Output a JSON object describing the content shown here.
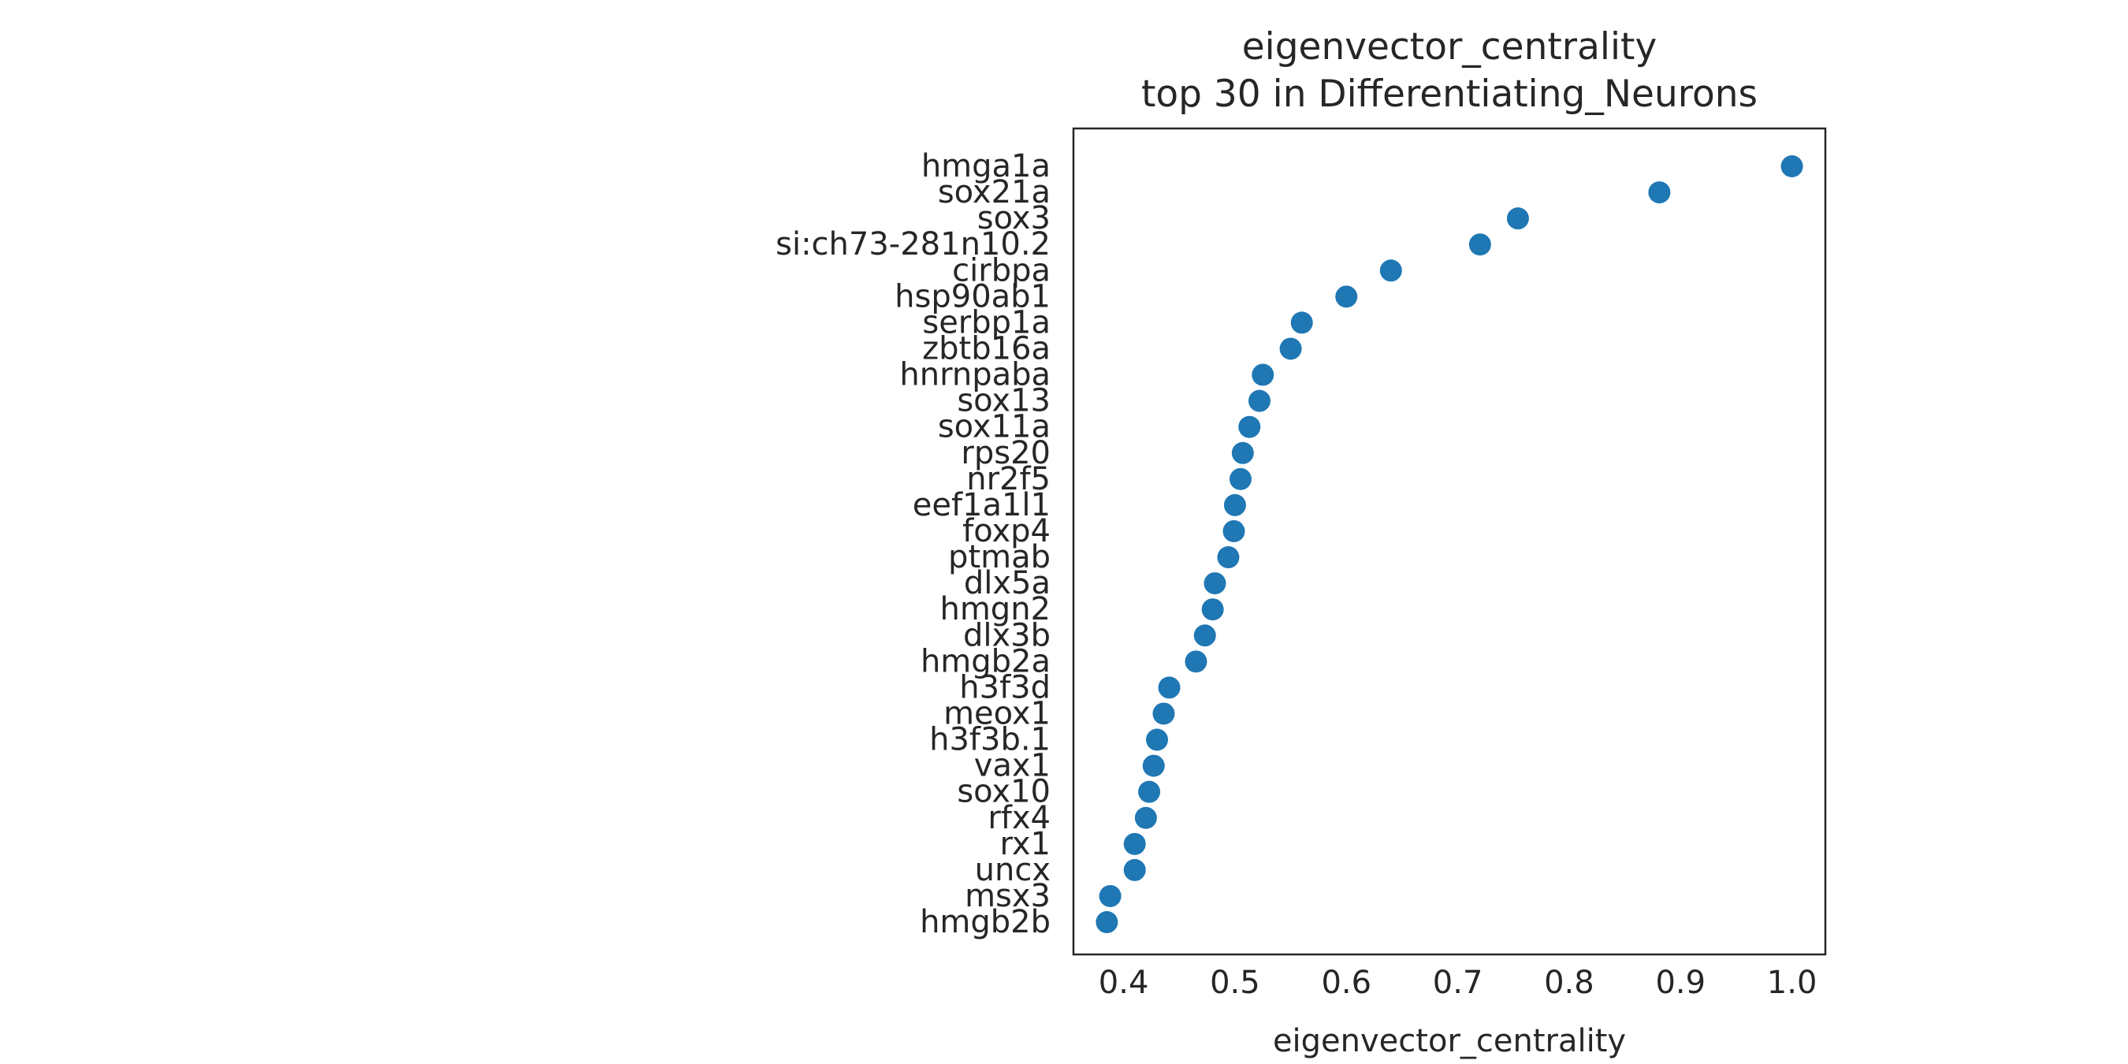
{
  "chart_data": {
    "type": "scatter",
    "title": [
      "eigenvector_centrality",
      "top 30 in Differentiating_Neurons"
    ],
    "xlabel": "eigenvector_centrality",
    "ylabel": "",
    "xlim": [
      0.355,
      1.03
    ],
    "xticks": [
      0.4,
      0.5,
      0.6,
      0.7,
      0.8,
      0.9,
      1.0
    ],
    "xtick_labels": [
      "0.4",
      "0.5",
      "0.6",
      "0.7",
      "0.8",
      "0.9",
      "1.0"
    ],
    "grid": false,
    "marker_color": "#1f77b4",
    "categories": [
      "hmga1a",
      "sox21a",
      "sox3",
      "si:ch73-281n10.2",
      "cirbpa",
      "hsp90ab1",
      "serbp1a",
      "zbtb16a",
      "hnrnpaba",
      "sox13",
      "sox11a",
      "rps20",
      "nr2f5",
      "eef1a1l1",
      "foxp4",
      "ptmab",
      "dlx5a",
      "hmgn2",
      "dlx3b",
      "hmgb2a",
      "h3f3d",
      "meox1",
      "h3f3b.1",
      "vax1",
      "sox10",
      "rfx4",
      "rx1",
      "uncx",
      "msx3",
      "hmgb2b"
    ],
    "values": [
      1.0,
      0.881,
      0.754,
      0.72,
      0.64,
      0.6,
      0.56,
      0.55,
      0.525,
      0.522,
      0.513,
      0.507,
      0.505,
      0.5,
      0.499,
      0.494,
      0.482,
      0.48,
      0.473,
      0.465,
      0.441,
      0.436,
      0.43,
      0.427,
      0.423,
      0.42,
      0.41,
      0.41,
      0.388,
      0.385
    ]
  }
}
